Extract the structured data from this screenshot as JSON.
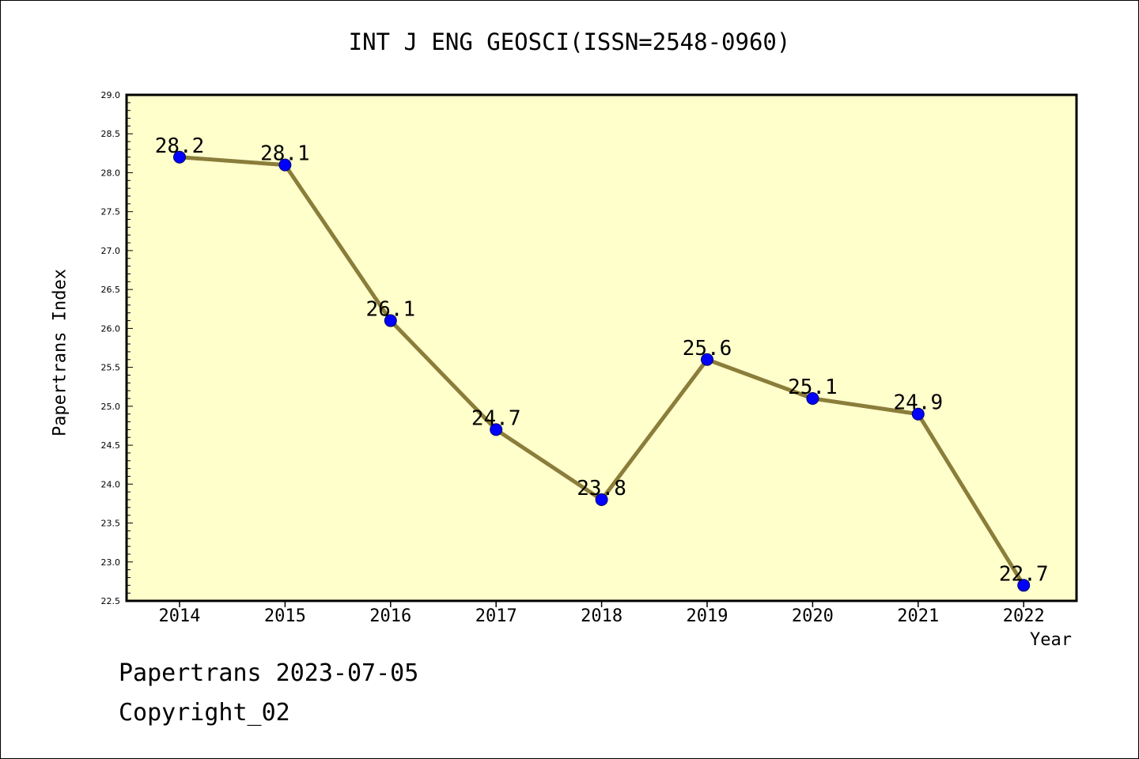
{
  "title": "INT J ENG GEOSCI(ISSN=2548-0960)",
  "footer": {
    "line1": "Papertrans 2023-07-05",
    "line2": "Copyright_02"
  },
  "colors": {
    "plot_background": "#ffffcc",
    "line": "#8b7d3a",
    "marker": "#0000ff",
    "axis": "#000000"
  },
  "chart_data": {
    "type": "line",
    "title": "INT J ENG GEOSCI(ISSN=2548-0960)",
    "xlabel": "Year",
    "ylabel": "Papertrans Index",
    "categories": [
      "2014",
      "2015",
      "2016",
      "2017",
      "2018",
      "2019",
      "2020",
      "2021",
      "2022"
    ],
    "series": [
      {
        "values": [
          28.2,
          28.1,
          26.1,
          24.7,
          23.8,
          25.6,
          25.1,
          24.9,
          22.7
        ]
      }
    ],
    "data_labels": [
      "28.2",
      "28.1",
      "26.1",
      "24.7",
      "23.8",
      "25.6",
      "25.1",
      "24.9",
      "22.7"
    ],
    "ylim": [
      22.5,
      29.0
    ],
    "yticks": [
      "22.5",
      "23.0",
      "23.5",
      "24.0",
      "24.5",
      "25.0",
      "25.5",
      "26.0",
      "26.5",
      "27.0",
      "27.5",
      "28.0",
      "28.5",
      "29.0"
    ],
    "grid": false,
    "legend": "none"
  }
}
